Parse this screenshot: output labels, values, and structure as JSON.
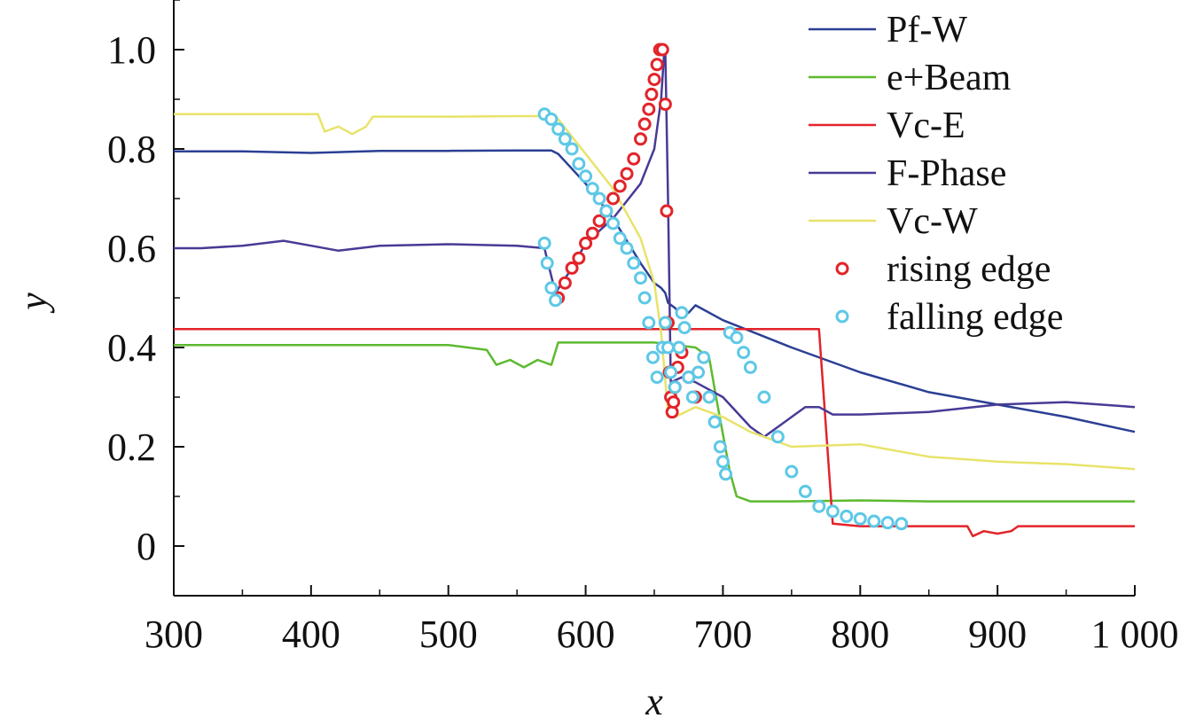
{
  "chart_data": {
    "type": "line",
    "xlabel": "x",
    "ylabel": "y",
    "xlim": [
      300,
      1000
    ],
    "ylim": [
      -0.1,
      1.1
    ],
    "x_ticks": [
      300,
      400,
      500,
      600,
      700,
      800,
      900,
      1000
    ],
    "x_tick_labels": [
      "300",
      "400",
      "500",
      "600",
      "700",
      "800",
      "900",
      "1 000"
    ],
    "y_ticks": [
      0,
      0.2,
      0.4,
      0.6,
      0.8,
      1.0
    ],
    "y_tick_labels": [
      "0",
      "0.2",
      "0.4",
      "0.6",
      "0.8",
      "1.0"
    ],
    "grid": false,
    "legend_position": "top-right",
    "series": [
      {
        "name": "Pf-W",
        "kind": "line",
        "color": "#2b3f94",
        "x": [
          300,
          350,
          400,
          450,
          500,
          550,
          575,
          580,
          600,
          620,
          640,
          650,
          655,
          658,
          660,
          665,
          670,
          675,
          680,
          700,
          750,
          800,
          850,
          900,
          950,
          1000
        ],
        "y": [
          0.795,
          0.795,
          0.792,
          0.796,
          0.796,
          0.797,
          0.797,
          0.79,
          0.73,
          0.66,
          0.57,
          0.53,
          0.52,
          0.51,
          0.49,
          0.48,
          0.465,
          0.47,
          0.485,
          0.455,
          0.4,
          0.35,
          0.31,
          0.285,
          0.26,
          0.23
        ]
      },
      {
        "name": "e+Beam",
        "kind": "line",
        "color": "#5dba2f",
        "x": [
          300,
          400,
          500,
          528,
          535,
          545,
          555,
          565,
          575,
          580,
          600,
          650,
          680,
          690,
          695,
          705,
          710,
          720,
          750,
          800,
          850,
          900,
          950,
          1000
        ],
        "y": [
          0.405,
          0.405,
          0.405,
          0.395,
          0.365,
          0.375,
          0.36,
          0.375,
          0.365,
          0.41,
          0.41,
          0.41,
          0.4,
          0.38,
          0.3,
          0.15,
          0.1,
          0.09,
          0.09,
          0.092,
          0.09,
          0.09,
          0.09,
          0.09
        ]
      },
      {
        "name": "Vc-E",
        "kind": "line",
        "color": "#e2242a",
        "x": [
          300,
          400,
          500,
          600,
          650,
          700,
          770,
          780,
          800,
          850,
          878,
          882,
          890,
          900,
          910,
          915,
          950,
          1000
        ],
        "y": [
          0.437,
          0.437,
          0.437,
          0.437,
          0.437,
          0.437,
          0.437,
          0.045,
          0.04,
          0.04,
          0.04,
          0.02,
          0.03,
          0.025,
          0.03,
          0.04,
          0.04,
          0.04
        ]
      },
      {
        "name": "F-Phase",
        "kind": "line",
        "color": "#473b96",
        "x": [
          300,
          320,
          350,
          380,
          400,
          420,
          450,
          500,
          550,
          570,
          578,
          590,
          600,
          620,
          640,
          650,
          655,
          657,
          658,
          660,
          662,
          670,
          680,
          700,
          720,
          730,
          740,
          750,
          760,
          770,
          780,
          800,
          850,
          900,
          950,
          1000
        ],
        "y": [
          0.6,
          0.6,
          0.605,
          0.615,
          0.605,
          0.595,
          0.605,
          0.608,
          0.605,
          0.6,
          0.51,
          0.56,
          0.61,
          0.66,
          0.73,
          0.8,
          0.9,
          0.985,
          1.0,
          0.7,
          0.33,
          0.34,
          0.33,
          0.3,
          0.24,
          0.22,
          0.24,
          0.26,
          0.28,
          0.28,
          0.265,
          0.265,
          0.27,
          0.285,
          0.29,
          0.28
        ]
      },
      {
        "name": "Vc-W",
        "kind": "line",
        "color": "#e8e36a",
        "x": [
          300,
          350,
          405,
          410,
          420,
          430,
          440,
          445,
          500,
          550,
          570,
          580,
          600,
          620,
          640,
          650,
          655,
          660,
          665,
          680,
          700,
          720,
          750,
          800,
          850,
          900,
          950,
          1000
        ],
        "y": [
          0.87,
          0.87,
          0.87,
          0.835,
          0.845,
          0.83,
          0.845,
          0.865,
          0.865,
          0.866,
          0.866,
          0.86,
          0.79,
          0.72,
          0.62,
          0.53,
          0.43,
          0.27,
          0.26,
          0.28,
          0.26,
          0.23,
          0.2,
          0.205,
          0.18,
          0.17,
          0.165,
          0.155
        ]
      },
      {
        "name": "rising edge",
        "kind": "scatter",
        "color": "#e2242a",
        "x": [
          580,
          585,
          590,
          595,
          600,
          605,
          610,
          615,
          620,
          625,
          630,
          635,
          640,
          643,
          646,
          648,
          650,
          652,
          654,
          656,
          658,
          659,
          660,
          661,
          662,
          663,
          664,
          665,
          667,
          670,
          675,
          680
        ],
        "y": [
          0.5,
          0.53,
          0.56,
          0.58,
          0.61,
          0.63,
          0.655,
          0.675,
          0.7,
          0.725,
          0.75,
          0.78,
          0.82,
          0.85,
          0.88,
          0.91,
          0.94,
          0.97,
          1.0,
          1.0,
          0.89,
          0.675,
          0.45,
          0.35,
          0.3,
          0.27,
          0.29,
          0.32,
          0.36,
          0.39,
          0.34,
          0.3
        ]
      },
      {
        "name": "falling edge",
        "kind": "scatter",
        "color": "#5ec8e6",
        "x": [
          570,
          575,
          580,
          585,
          590,
          595,
          600,
          605,
          610,
          615,
          620,
          625,
          630,
          635,
          640,
          643,
          646,
          649,
          652,
          656,
          658,
          660,
          662,
          665,
          668,
          670,
          672,
          675,
          678,
          682,
          686,
          690,
          694,
          698,
          700,
          702,
          705,
          710,
          715,
          720,
          730,
          740,
          750,
          760,
          770,
          780,
          790,
          800,
          810,
          820,
          830
        ],
        "y": [
          0.87,
          0.86,
          0.84,
          0.82,
          0.8,
          0.77,
          0.745,
          0.72,
          0.7,
          0.675,
          0.65,
          0.62,
          0.6,
          0.57,
          0.54,
          0.5,
          0.45,
          0.38,
          0.34,
          0.4,
          0.45,
          0.4,
          0.35,
          0.32,
          0.4,
          0.47,
          0.44,
          0.34,
          0.3,
          0.35,
          0.38,
          0.3,
          0.25,
          0.2,
          0.17,
          0.145,
          0.43,
          0.42,
          0.39,
          0.36,
          0.3,
          0.22,
          0.15,
          0.11,
          0.08,
          0.07,
          0.06,
          0.055,
          0.05,
          0.047,
          0.045
        ]
      },
      {
        "name": "",
        "kind": "scatter",
        "color": "#5ec8e6",
        "legend": false,
        "x": [
          570,
          572,
          575,
          578
        ],
        "y": [
          0.61,
          0.57,
          0.52,
          0.495
        ]
      }
    ]
  }
}
